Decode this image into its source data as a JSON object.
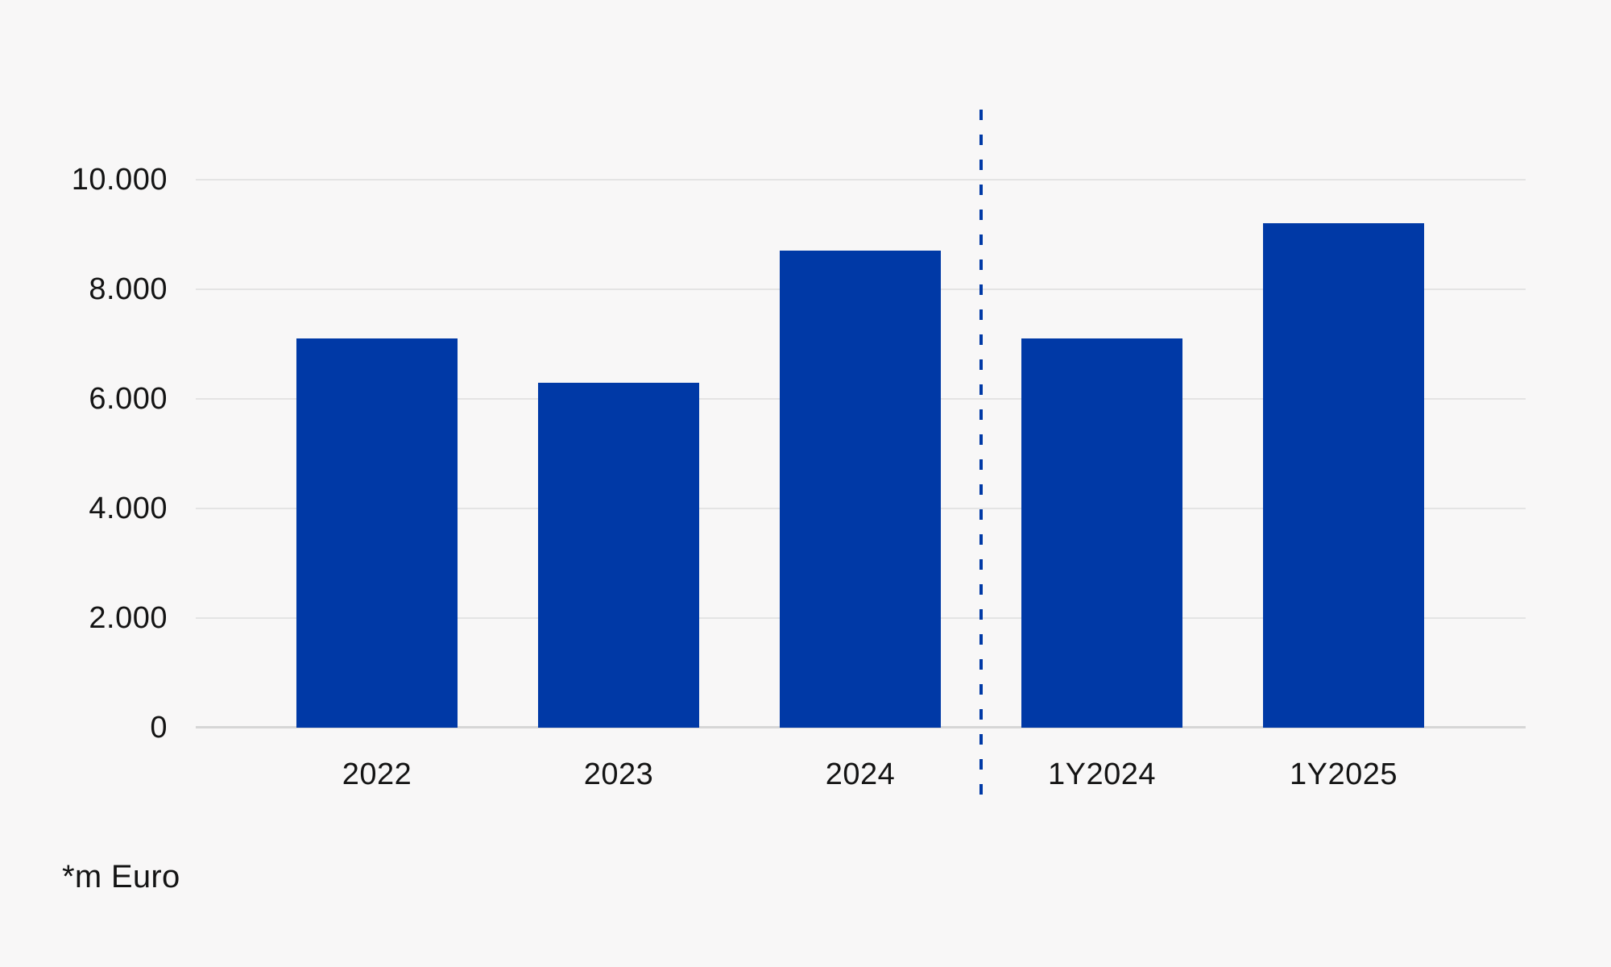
{
  "chart_data": {
    "type": "bar",
    "categories": [
      "2022",
      "2023",
      "2024",
      "1Y2024",
      "1Y2025"
    ],
    "values": [
      7100,
      6300,
      8700,
      7100,
      9200
    ],
    "title": "",
    "xlabel": "",
    "ylabel": "",
    "ylim": [
      0,
      10000
    ],
    "yticks": [
      0,
      2000,
      4000,
      6000,
      8000,
      10000
    ],
    "ytick_labels": [
      "0",
      "2.000",
      "4.000",
      "6.000",
      "8.000",
      "10.000"
    ],
    "grid": true,
    "legend": false,
    "divider": {
      "after_category": "2024",
      "style": "dashed",
      "color_hex": "#0039a6"
    },
    "footnote": "*m Euro"
  },
  "colors": {
    "background": "#f8f7f7",
    "bar": "#0039a6",
    "gridline": "#e4e4e4",
    "axis_line": "#d6d6d6",
    "divider": "#0039a6",
    "text": "#141414"
  }
}
